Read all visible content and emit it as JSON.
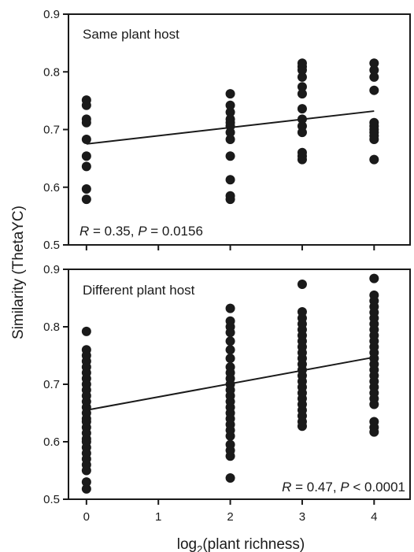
{
  "figure": {
    "y_axis_title": "Similarity (ThetaYC)",
    "x_axis_title_prefix": "log",
    "x_axis_title_subscript": "2",
    "x_axis_title_suffix": "(plant richness)"
  },
  "chart_data": [
    {
      "type": "scatter",
      "panel": "top",
      "title": "Same plant host",
      "stat_r_symbol": "R",
      "stat_r_value": " = 0.35, ",
      "stat_p_symbol": "P",
      "stat_p_value": " = 0.0156",
      "xlabel": "",
      "ylabel": "Similarity (ThetaYC)",
      "xlim": [
        -0.25,
        4.5
      ],
      "ylim": [
        0.5,
        0.9
      ],
      "x_ticks": [],
      "y_ticks": [
        "0.5",
        "0.6",
        "0.7",
        "0.8",
        "0.9"
      ],
      "grid": false,
      "series": [
        {
          "points": [
            [
              0,
              0.579
            ],
            [
              0,
              0.597
            ],
            [
              0,
              0.636
            ],
            [
              0,
              0.654
            ],
            [
              0,
              0.683
            ],
            [
              0,
              0.712
            ],
            [
              0,
              0.718
            ],
            [
              0,
              0.742
            ],
            [
              0,
              0.751
            ],
            [
              2,
              0.579
            ],
            [
              2,
              0.585
            ],
            [
              2,
              0.613
            ],
            [
              2,
              0.654
            ],
            [
              2,
              0.683
            ],
            [
              2,
              0.695
            ],
            [
              2,
              0.706
            ],
            [
              2,
              0.712
            ],
            [
              2,
              0.718
            ],
            [
              2,
              0.73
            ],
            [
              2,
              0.742
            ],
            [
              2,
              0.762
            ],
            [
              3,
              0.648
            ],
            [
              3,
              0.654
            ],
            [
              3,
              0.66
            ],
            [
              3,
              0.695
            ],
            [
              3,
              0.706
            ],
            [
              3,
              0.718
            ],
            [
              3,
              0.736
            ],
            [
              3,
              0.762
            ],
            [
              3,
              0.774
            ],
            [
              3,
              0.791
            ],
            [
              3,
              0.803
            ],
            [
              3,
              0.809
            ],
            [
              3,
              0.815
            ],
            [
              4,
              0.648
            ],
            [
              4,
              0.683
            ],
            [
              4,
              0.689
            ],
            [
              4,
              0.695
            ],
            [
              4,
              0.7
            ],
            [
              4,
              0.706
            ],
            [
              4,
              0.712
            ],
            [
              4,
              0.768
            ],
            [
              4,
              0.791
            ],
            [
              4,
              0.803
            ],
            [
              4,
              0.815
            ]
          ]
        }
      ],
      "fit_line": {
        "x": [
          0,
          4
        ],
        "y": [
          0.675,
          0.732
        ]
      }
    },
    {
      "type": "scatter",
      "panel": "bottom",
      "title": "Different plant host",
      "stat_r_symbol": "R",
      "stat_r_value": " = 0.47, ",
      "stat_p_symbol": "P",
      "stat_p_value": " < 0.0001",
      "xlabel": "log2(plant richness)",
      "ylabel": "Similarity (ThetaYC)",
      "xlim": [
        -0.25,
        4.5
      ],
      "ylim": [
        0.5,
        0.9
      ],
      "x_ticks": [
        "0",
        "1",
        "2",
        "3",
        "4"
      ],
      "y_ticks": [
        "0.5",
        "0.6",
        "0.7",
        "0.8",
        "0.9"
      ],
      "grid": false,
      "series": [
        {
          "points": [
            [
              0,
              0.518
            ],
            [
              0,
              0.53
            ],
            [
              0,
              0.55
            ],
            [
              0,
              0.56
            ],
            [
              0,
              0.57
            ],
            [
              0,
              0.58
            ],
            [
              0,
              0.59
            ],
            [
              0,
              0.6
            ],
            [
              0,
              0.605
            ],
            [
              0,
              0.615
            ],
            [
              0,
              0.625
            ],
            [
              0,
              0.635
            ],
            [
              0,
              0.64
            ],
            [
              0,
              0.65
            ],
            [
              0,
              0.66
            ],
            [
              0,
              0.67
            ],
            [
              0,
              0.68
            ],
            [
              0,
              0.69
            ],
            [
              0,
              0.7
            ],
            [
              0,
              0.71
            ],
            [
              0,
              0.72
            ],
            [
              0,
              0.73
            ],
            [
              0,
              0.74
            ],
            [
              0,
              0.75
            ],
            [
              0,
              0.76
            ],
            [
              0,
              0.792
            ],
            [
              2,
              0.537
            ],
            [
              2,
              0.575
            ],
            [
              2,
              0.585
            ],
            [
              2,
              0.595
            ],
            [
              2,
              0.61
            ],
            [
              2,
              0.62
            ],
            [
              2,
              0.63
            ],
            [
              2,
              0.64
            ],
            [
              2,
              0.65
            ],
            [
              2,
              0.66
            ],
            [
              2,
              0.67
            ],
            [
              2,
              0.68
            ],
            [
              2,
              0.69
            ],
            [
              2,
              0.7
            ],
            [
              2,
              0.71
            ],
            [
              2,
              0.72
            ],
            [
              2,
              0.73
            ],
            [
              2,
              0.745
            ],
            [
              2,
              0.76
            ],
            [
              2,
              0.775
            ],
            [
              2,
              0.79
            ],
            [
              2,
              0.8
            ],
            [
              2,
              0.81
            ],
            [
              2,
              0.832
            ],
            [
              3,
              0.627
            ],
            [
              3,
              0.635
            ],
            [
              3,
              0.645
            ],
            [
              3,
              0.655
            ],
            [
              3,
              0.665
            ],
            [
              3,
              0.675
            ],
            [
              3,
              0.685
            ],
            [
              3,
              0.695
            ],
            [
              3,
              0.705
            ],
            [
              3,
              0.715
            ],
            [
              3,
              0.725
            ],
            [
              3,
              0.735
            ],
            [
              3,
              0.745
            ],
            [
              3,
              0.755
            ],
            [
              3,
              0.765
            ],
            [
              3,
              0.775
            ],
            [
              3,
              0.785
            ],
            [
              3,
              0.795
            ],
            [
              3,
              0.805
            ],
            [
              3,
              0.815
            ],
            [
              3,
              0.826
            ],
            [
              3,
              0.874
            ],
            [
              4,
              0.617
            ],
            [
              4,
              0.625
            ],
            [
              4,
              0.635
            ],
            [
              4,
              0.665
            ],
            [
              4,
              0.675
            ],
            [
              4,
              0.685
            ],
            [
              4,
              0.695
            ],
            [
              4,
              0.705
            ],
            [
              4,
              0.715
            ],
            [
              4,
              0.725
            ],
            [
              4,
              0.735
            ],
            [
              4,
              0.745
            ],
            [
              4,
              0.755
            ],
            [
              4,
              0.765
            ],
            [
              4,
              0.775
            ],
            [
              4,
              0.785
            ],
            [
              4,
              0.795
            ],
            [
              4,
              0.805
            ],
            [
              4,
              0.815
            ],
            [
              4,
              0.825
            ],
            [
              4,
              0.835
            ],
            [
              4,
              0.845
            ],
            [
              4,
              0.855
            ],
            [
              4,
              0.884
            ]
          ]
        }
      ],
      "fit_line": {
        "x": [
          0,
          4
        ],
        "y": [
          0.655,
          0.747
        ]
      }
    }
  ]
}
